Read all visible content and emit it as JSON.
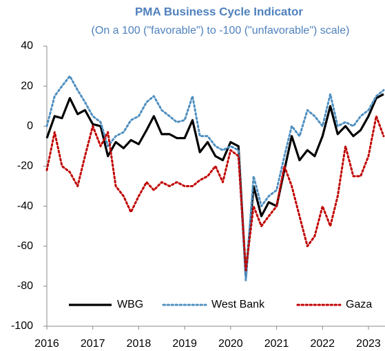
{
  "chart_data": {
    "type": "line",
    "title": "PMA Business Cycle Indicator",
    "subtitle": "(On a 100 (\"favorable\") to -100 (\"unfavorable\") scale)",
    "x": [
      2016.0,
      2016.17,
      2016.33,
      2016.5,
      2016.67,
      2016.83,
      2017.0,
      2017.17,
      2017.33,
      2017.5,
      2017.67,
      2017.83,
      2018.0,
      2018.17,
      2018.33,
      2018.5,
      2018.67,
      2018.83,
      2019.0,
      2019.17,
      2019.33,
      2019.5,
      2019.67,
      2019.83,
      2020.0,
      2020.17,
      2020.33,
      2020.5,
      2020.67,
      2020.83,
      2021.0,
      2021.17,
      2021.33,
      2021.5,
      2021.67,
      2021.83,
      2022.0,
      2022.17,
      2022.33,
      2022.5,
      2022.67,
      2022.83,
      2023.0,
      2023.17,
      2023.33
    ],
    "series": [
      {
        "name": "WBG",
        "color": "#000000",
        "style": "solid",
        "values": [
          -6,
          5,
          4,
          14,
          6,
          8,
          1,
          0,
          -15,
          -8,
          -11,
          -7,
          -9,
          -2,
          5,
          -4,
          -4,
          -6,
          -6,
          3,
          -13,
          -8,
          -15,
          -17,
          -8,
          -10,
          -75,
          -30,
          -45,
          -38,
          -40,
          -22,
          -5,
          -17,
          -12,
          -15,
          -5,
          10,
          -4,
          0,
          -5,
          -2,
          5,
          14,
          16
        ]
      },
      {
        "name": "West Bank",
        "color": "#4f8fc0",
        "style": "dotted",
        "values": [
          0,
          15,
          20,
          25,
          18,
          12,
          5,
          2,
          -10,
          -5,
          -3,
          3,
          5,
          12,
          15,
          8,
          5,
          2,
          3,
          15,
          -5,
          -5,
          -10,
          -12,
          -10,
          -12,
          -77,
          -25,
          -40,
          -35,
          -32,
          -15,
          0,
          -5,
          8,
          5,
          0,
          16,
          0,
          2,
          0,
          5,
          8,
          15,
          18
        ]
      },
      {
        "name": "Gaza",
        "color": "#c00000",
        "style": "dotted",
        "values": [
          -22,
          -3,
          -20,
          -23,
          -30,
          -15,
          0,
          -10,
          -3,
          -30,
          -35,
          -43,
          -35,
          -28,
          -32,
          -28,
          -30,
          -28,
          -30,
          -30,
          -27,
          -25,
          -20,
          -28,
          -12,
          -15,
          -72,
          -40,
          -50,
          -45,
          -40,
          -20,
          -30,
          -45,
          -60,
          -55,
          -40,
          -50,
          -35,
          -10,
          -25,
          -25,
          -15,
          5,
          -5
        ]
      }
    ],
    "xlim": [
      2016,
      2023.36
    ],
    "xticks": [
      2016,
      2017,
      2018,
      2019,
      2020,
      2021,
      2022,
      2023
    ],
    "ylim": [
      -100,
      40
    ],
    "yticks": [
      -100,
      -80,
      -60,
      -40,
      -20,
      0,
      20,
      40
    ],
    "legend": "bottom"
  }
}
